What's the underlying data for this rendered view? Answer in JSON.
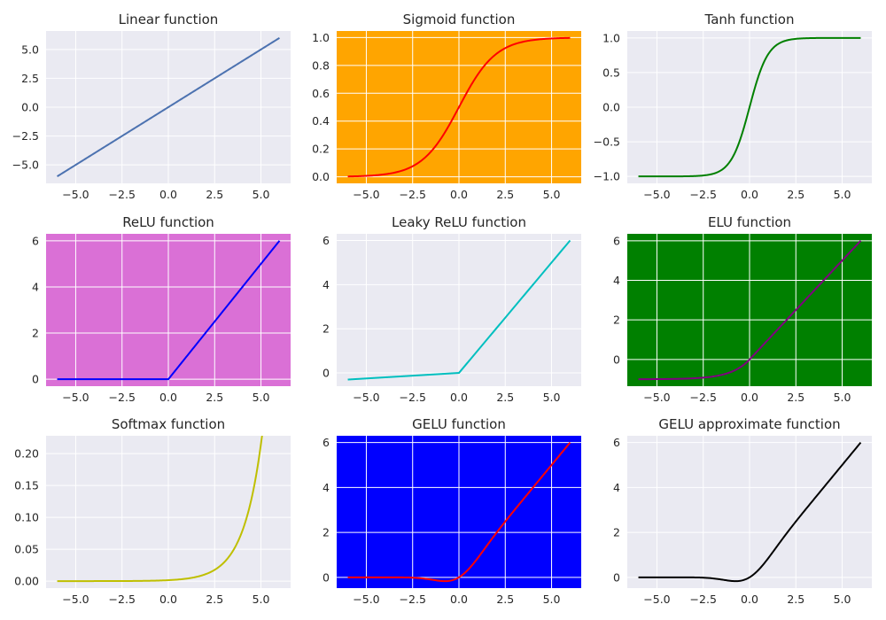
{
  "figure": {
    "background": "#ffffff"
  },
  "chart_data": [
    {
      "type": "line",
      "title": "Linear function",
      "fn": "linear",
      "xlim": [
        -6.6,
        6.6
      ],
      "ylim": [
        -6.6,
        6.6
      ],
      "xticks": [
        -5,
        -2.5,
        0,
        2.5,
        5
      ],
      "xtick_labels": [
        "−5.0",
        "−2.5",
        "0.0",
        "2.5",
        "5.0"
      ],
      "yticks": [
        -5,
        -2.5,
        0,
        2.5,
        5
      ],
      "ytick_labels": [
        "−5.0",
        "−2.5",
        "0.0",
        "2.5",
        "5.0"
      ],
      "facecolor": "#eaeaf2",
      "line_color": "#4c72b0",
      "grid": true,
      "x_range": [
        -6,
        6
      ]
    },
    {
      "type": "line",
      "title": "Sigmoid function",
      "fn": "sigmoid",
      "xlim": [
        -6.6,
        6.6
      ],
      "ylim": [
        -0.047,
        1.047
      ],
      "xticks": [
        -5,
        -2.5,
        0,
        2.5,
        5
      ],
      "xtick_labels": [
        "−5.0",
        "−2.5",
        "0.0",
        "2.5",
        "5.0"
      ],
      "yticks": [
        0,
        0.2,
        0.4,
        0.6,
        0.8,
        1.0
      ],
      "ytick_labels": [
        "0.0",
        "0.2",
        "0.4",
        "0.6",
        "0.8",
        "1.0"
      ],
      "facecolor": "#ffa500",
      "line_color": "#ff0000",
      "grid": true,
      "x_range": [
        -6,
        6
      ]
    },
    {
      "type": "line",
      "title": "Tanh function",
      "fn": "tanh",
      "xlim": [
        -6.6,
        6.6
      ],
      "ylim": [
        -1.1,
        1.1
      ],
      "xticks": [
        -5,
        -2.5,
        0,
        2.5,
        5
      ],
      "xtick_labels": [
        "−5.0",
        "−2.5",
        "0.0",
        "2.5",
        "5.0"
      ],
      "yticks": [
        -1,
        -0.5,
        0,
        0.5,
        1
      ],
      "ytick_labels": [
        "−1.0",
        "−0.5",
        "0.0",
        "0.5",
        "1.0"
      ],
      "facecolor": "#eaeaf2",
      "line_color": "#008000",
      "grid": true,
      "x_range": [
        -6,
        6
      ]
    },
    {
      "type": "line",
      "title": "ReLU function",
      "fn": "relu",
      "xlim": [
        -6.6,
        6.6
      ],
      "ylim": [
        -0.3,
        6.3
      ],
      "xticks": [
        -5,
        -2.5,
        0,
        2.5,
        5
      ],
      "xtick_labels": [
        "−5.0",
        "−2.5",
        "0.0",
        "2.5",
        "5.0"
      ],
      "yticks": [
        0,
        2,
        4,
        6
      ],
      "ytick_labels": [
        "0",
        "2",
        "4",
        "6"
      ],
      "facecolor": "#da70d6",
      "line_color": "#0000ff",
      "grid": true,
      "x_range": [
        -6,
        6
      ]
    },
    {
      "type": "line",
      "title": "Leaky ReLU function",
      "fn": "leaky_relu",
      "alpha": 0.05,
      "xlim": [
        -6.6,
        6.6
      ],
      "ylim": [
        -0.6,
        6.3
      ],
      "xticks": [
        -5,
        -2.5,
        0,
        2.5,
        5
      ],
      "xtick_labels": [
        "−5.0",
        "−2.5",
        "0.0",
        "2.5",
        "5.0"
      ],
      "yticks": [
        0,
        2,
        4,
        6
      ],
      "ytick_labels": [
        "0",
        "2",
        "4",
        "6"
      ],
      "facecolor": "#eaeaf2",
      "line_color": "#00bfbf",
      "grid": true,
      "x_range": [
        -6,
        6
      ]
    },
    {
      "type": "line",
      "title": "ELU function",
      "fn": "elu",
      "alpha": 1.0,
      "xlim": [
        -6.6,
        6.6
      ],
      "ylim": [
        -1.35,
        6.35
      ],
      "xticks": [
        -5,
        -2.5,
        0,
        2.5,
        5
      ],
      "xtick_labels": [
        "−5.0",
        "−2.5",
        "0.0",
        "2.5",
        "5.0"
      ],
      "yticks": [
        0,
        2,
        4,
        6
      ],
      "ytick_labels": [
        "0",
        "2",
        "4",
        "6"
      ],
      "facecolor": "#008000",
      "line_color": "#800080",
      "grid": true,
      "x_range": [
        -6,
        6
      ]
    },
    {
      "type": "line",
      "title": "Softmax function",
      "fn": "softmax",
      "xlim": [
        -6.6,
        6.6
      ],
      "ylim": [
        -0.011,
        0.228
      ],
      "xticks": [
        -5,
        -2.5,
        0,
        2.5,
        5
      ],
      "xtick_labels": [
        "−5.0",
        "−2.5",
        "0.0",
        "2.5",
        "5.0"
      ],
      "yticks": [
        0,
        0.05,
        0.1,
        0.15,
        0.2
      ],
      "ytick_labels": [
        "0.00",
        "0.05",
        "0.10",
        "0.15",
        "0.20"
      ],
      "facecolor": "#eaeaf2",
      "line_color": "#bfbf00",
      "grid": true,
      "x_range": [
        -6,
        6
      ]
    },
    {
      "type": "line",
      "title": "GELU function",
      "fn": "gelu",
      "xlim": [
        -6.6,
        6.6
      ],
      "ylim": [
        -0.48,
        6.3
      ],
      "xticks": [
        -5,
        -2.5,
        0,
        2.5,
        5
      ],
      "xtick_labels": [
        "−5.0",
        "−2.5",
        "0.0",
        "2.5",
        "5.0"
      ],
      "yticks": [
        0,
        2,
        4,
        6
      ],
      "ytick_labels": [
        "0",
        "2",
        "4",
        "6"
      ],
      "facecolor": "#0000ff",
      "line_color": "#ff0000",
      "grid": true,
      "x_range": [
        -6,
        6
      ]
    },
    {
      "type": "line",
      "title": "GELU approximate function",
      "fn": "gelu",
      "xlim": [
        -6.6,
        6.6
      ],
      "ylim": [
        -0.48,
        6.3
      ],
      "xticks": [
        -5,
        -2.5,
        0,
        2.5,
        5
      ],
      "xtick_labels": [
        "−5.0",
        "−2.5",
        "0.0",
        "2.5",
        "5.0"
      ],
      "yticks": [
        0,
        2,
        4,
        6
      ],
      "ytick_labels": [
        "0",
        "2",
        "4",
        "6"
      ],
      "facecolor": "#eaeaf2",
      "line_color": "#000000",
      "grid": true,
      "x_range": [
        -6,
        6
      ]
    }
  ]
}
